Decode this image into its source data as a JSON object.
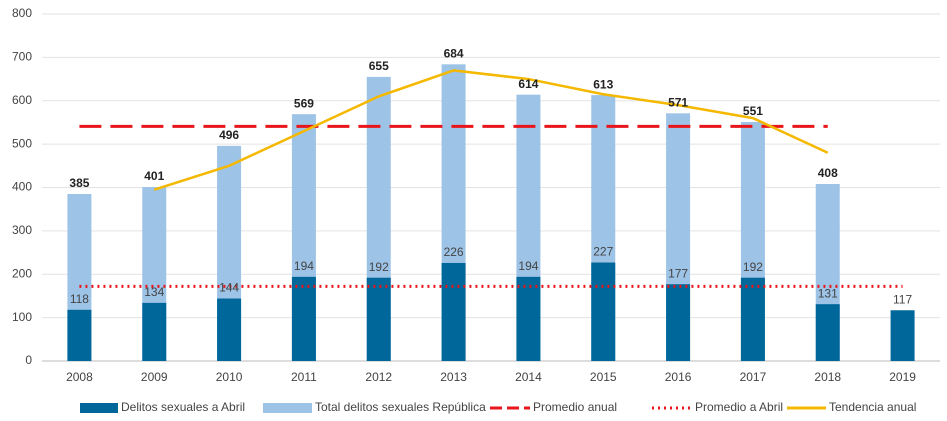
{
  "chart_data": {
    "type": "bar",
    "categories": [
      "2008",
      "2009",
      "2010",
      "2011",
      "2012",
      "2013",
      "2014",
      "2015",
      "2016",
      "2017",
      "2018",
      "2019"
    ],
    "series": [
      {
        "name": "Total delitos sexuales República",
        "kind": "bar",
        "color": "#9dc3e6",
        "label_bold": true,
        "values": [
          385,
          401,
          496,
          569,
          655,
          684,
          614,
          613,
          571,
          551,
          408,
          null
        ]
      },
      {
        "name": "Delitos sexuales a Abril",
        "kind": "bar",
        "color": "#00679a",
        "label_bold": false,
        "values": [
          118,
          134,
          144,
          194,
          192,
          226,
          194,
          227,
          177,
          192,
          131,
          117
        ]
      },
      {
        "name": "Promedio anual",
        "kind": "dashed",
        "color": "#e8161b",
        "values": [
          541,
          541,
          541,
          541,
          541,
          541,
          541,
          541,
          541,
          541,
          541,
          null
        ]
      },
      {
        "name": "Promedio a Abril",
        "kind": "dotted",
        "color": "#e8161b",
        "values": [
          172,
          172,
          172,
          172,
          172,
          172,
          172,
          172,
          172,
          172,
          172,
          172
        ]
      },
      {
        "name": "Tendencia anual",
        "kind": "line",
        "color": "#f5b800",
        "values": [
          null,
          395,
          450,
          530,
          610,
          670,
          650,
          615,
          590,
          560,
          480,
          null
        ]
      }
    ],
    "ylim": [
      0,
      800
    ],
    "yticks": [
      0,
      100,
      200,
      300,
      400,
      500,
      600,
      700,
      800
    ],
    "grid": true
  }
}
